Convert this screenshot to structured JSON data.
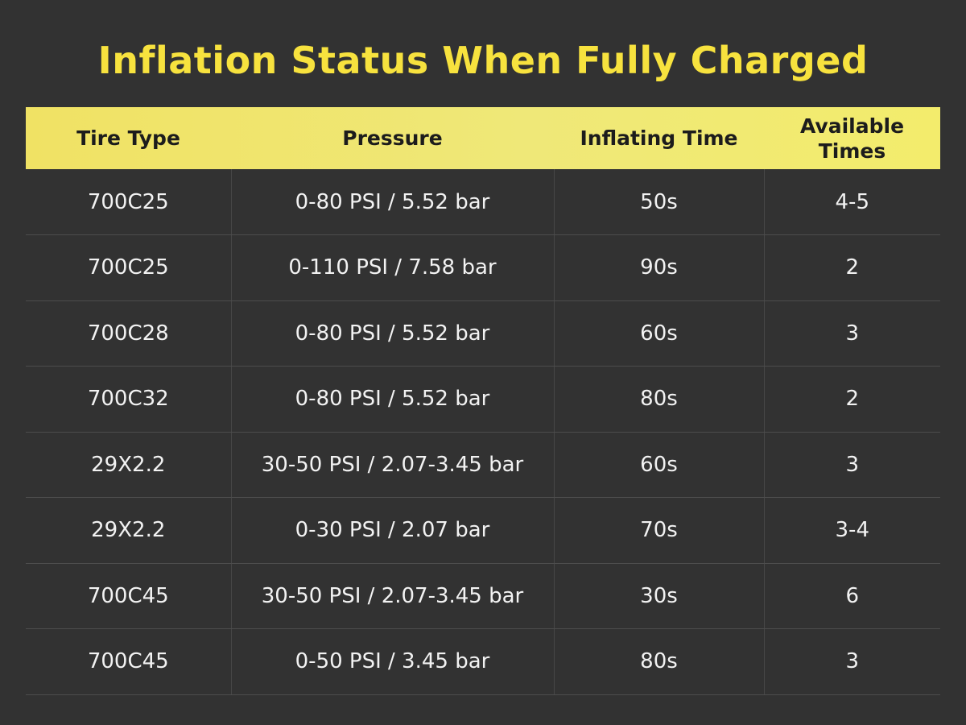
{
  "title": "Inflation Status When Fully Charged",
  "table": {
    "headers": [
      "Tire Type",
      "Pressure",
      "Inflating Time",
      "Available Times"
    ],
    "rows": [
      [
        "700C25",
        "0-80 PSI / 5.52 bar",
        "50s",
        "4-5"
      ],
      [
        "700C25",
        "0-110 PSI / 7.58 bar",
        "90s",
        "2"
      ],
      [
        "700C28",
        "0-80 PSI / 5.52 bar",
        "60s",
        "3"
      ],
      [
        "700C32",
        "0-80 PSI / 5.52 bar",
        "80s",
        "2"
      ],
      [
        "29X2.2",
        "30-50 PSI / 2.07-3.45 bar",
        "60s",
        "3"
      ],
      [
        "29X2.2",
        "0-30 PSI / 2.07 bar",
        "70s",
        "3-4"
      ],
      [
        "700C45",
        "30-50 PSI / 2.07-3.45 bar",
        "30s",
        "6"
      ],
      [
        "700C45",
        "0-50 PSI / 3.45 bar",
        "80s",
        "3"
      ]
    ]
  },
  "colors": {
    "background": "#323232",
    "title": "#f7e23e",
    "header_bg": "#efe878",
    "header_text": "#1c1c1c",
    "cell_text": "#f2f2f2"
  }
}
